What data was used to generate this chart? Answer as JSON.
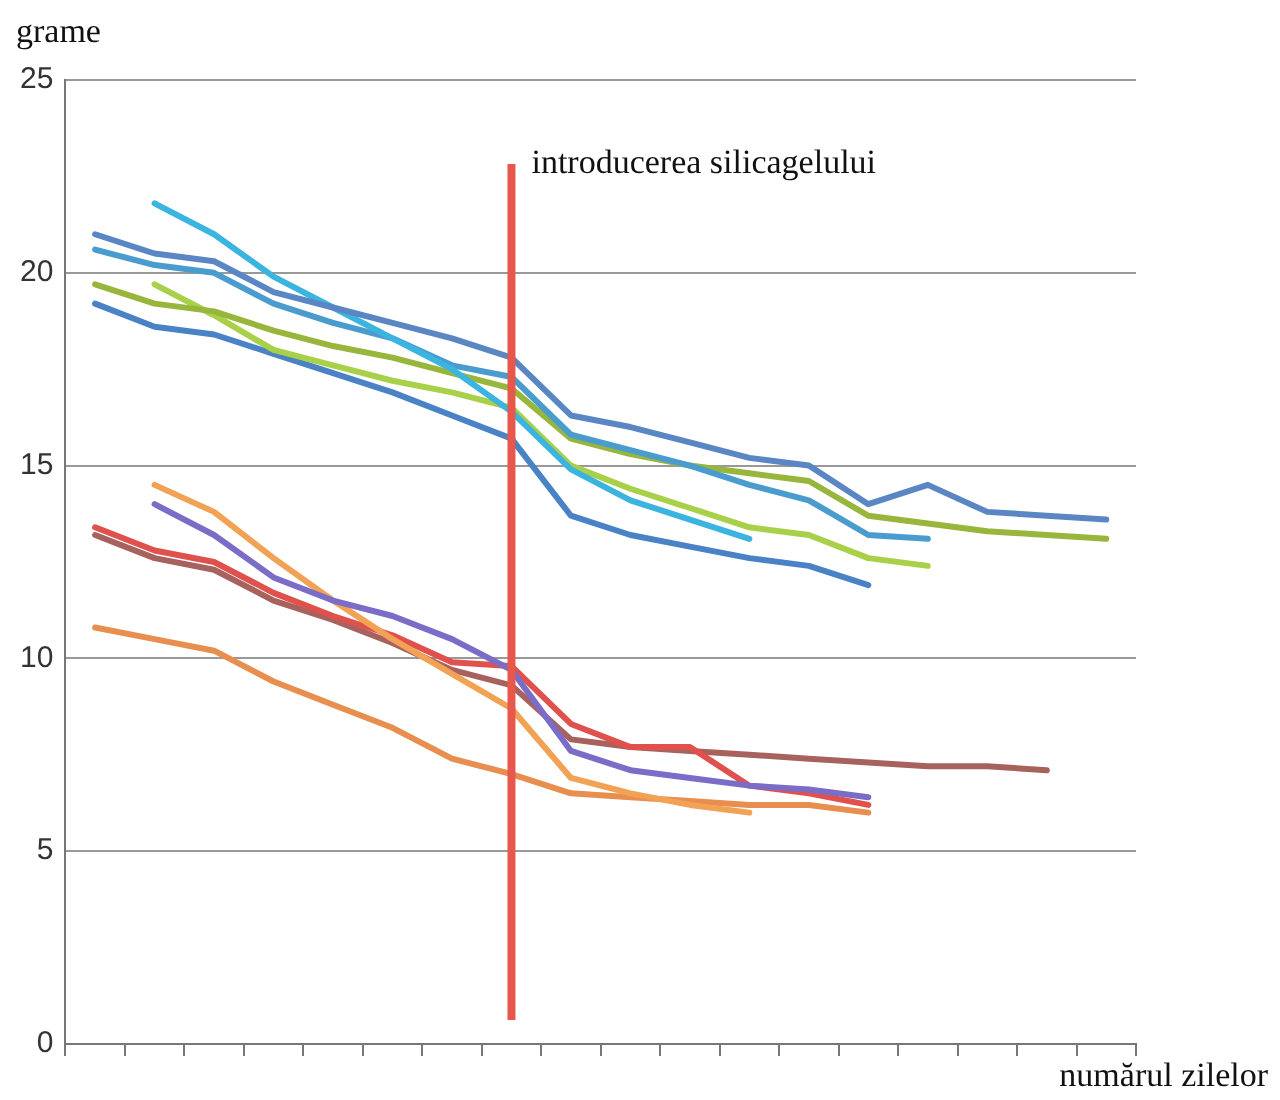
{
  "chart_data": {
    "type": "line",
    "xlabel": "numărul zilelor",
    "ylabel": "grame",
    "categories": [
      null,
      null,
      null,
      null,
      null,
      null,
      null,
      null,
      null,
      null,
      null,
      null,
      null,
      null,
      null,
      null,
      null,
      null
    ],
    "ylim": [
      0,
      25
    ],
    "yticks": [
      0,
      5,
      10,
      15,
      20,
      25
    ],
    "grid": "y",
    "legend": false,
    "marker": "none",
    "line_style": "solid",
    "annotations": [
      "introducerea silicagelului"
    ],
    "series": [
      {
        "color": "#5a86c4",
        "values": [
          21.0,
          20.5,
          20.3,
          19.5,
          19.1,
          18.7,
          18.3,
          17.8,
          16.3,
          16.0,
          15.6,
          15.2,
          15.0,
          14.0,
          14.5,
          13.8,
          13.7,
          13.6
        ]
      },
      {
        "color": "#3cb4e0",
        "values": [
          null,
          21.8,
          21.0,
          19.9,
          19.1,
          18.3,
          17.5,
          16.4,
          14.9,
          14.1,
          13.6,
          13.1,
          null,
          null,
          null,
          null,
          null,
          null
        ]
      },
      {
        "color": "#4a9ccf",
        "values": [
          20.6,
          20.2,
          20.0,
          19.2,
          18.7,
          18.3,
          17.6,
          17.3,
          15.8,
          15.4,
          15.0,
          14.5,
          14.1,
          13.2,
          13.1,
          null,
          null,
          null
        ]
      },
      {
        "color": "#98b63c",
        "values": [
          19.7,
          19.2,
          19.0,
          18.5,
          18.1,
          17.8,
          17.4,
          17.0,
          15.7,
          15.3,
          15.0,
          14.8,
          14.6,
          13.7,
          13.5,
          13.3,
          13.2,
          13.1
        ]
      },
      {
        "color": "#a8d048",
        "values": [
          null,
          19.7,
          18.9,
          18.0,
          17.6,
          17.2,
          16.9,
          16.5,
          15.0,
          14.4,
          13.9,
          13.4,
          13.2,
          12.6,
          12.4,
          null,
          null,
          null
        ]
      },
      {
        "color": "#4a82c6",
        "values": [
          19.2,
          18.6,
          18.4,
          17.9,
          17.4,
          16.9,
          16.3,
          15.7,
          13.7,
          13.2,
          12.9,
          12.6,
          12.4,
          11.9,
          null,
          null,
          null,
          null
        ]
      },
      {
        "color": "#7b6cc8",
        "values": [
          null,
          14.0,
          13.2,
          12.1,
          11.5,
          11.1,
          10.5,
          9.7,
          7.6,
          7.1,
          6.9,
          6.7,
          6.6,
          6.4,
          null,
          null,
          null,
          null
        ]
      },
      {
        "color": "#f2a255",
        "values": [
          null,
          14.5,
          13.8,
          12.6,
          11.5,
          10.5,
          9.6,
          8.7,
          6.9,
          6.5,
          6.2,
          6.0,
          null,
          null,
          null,
          null,
          null,
          null
        ]
      },
      {
        "color": "#e88e4e",
        "values": [
          10.8,
          10.5,
          10.2,
          9.4,
          8.8,
          8.2,
          7.4,
          7.0,
          6.5,
          6.4,
          6.3,
          6.2,
          6.2,
          6.0,
          null,
          null,
          null,
          null
        ]
      },
      {
        "color": "#e0504c",
        "values": [
          13.4,
          12.8,
          12.5,
          11.7,
          11.1,
          10.6,
          9.9,
          9.8,
          8.3,
          7.7,
          7.7,
          6.7,
          6.5,
          6.2,
          null,
          null,
          null,
          null
        ]
      },
      {
        "color": "#a8625e",
        "values": [
          13.2,
          12.6,
          12.3,
          11.5,
          11.0,
          10.4,
          9.7,
          9.3,
          7.9,
          7.7,
          7.6,
          7.5,
          7.4,
          7.3,
          7.2,
          7.2,
          7.1,
          null
        ]
      }
    ]
  }
}
